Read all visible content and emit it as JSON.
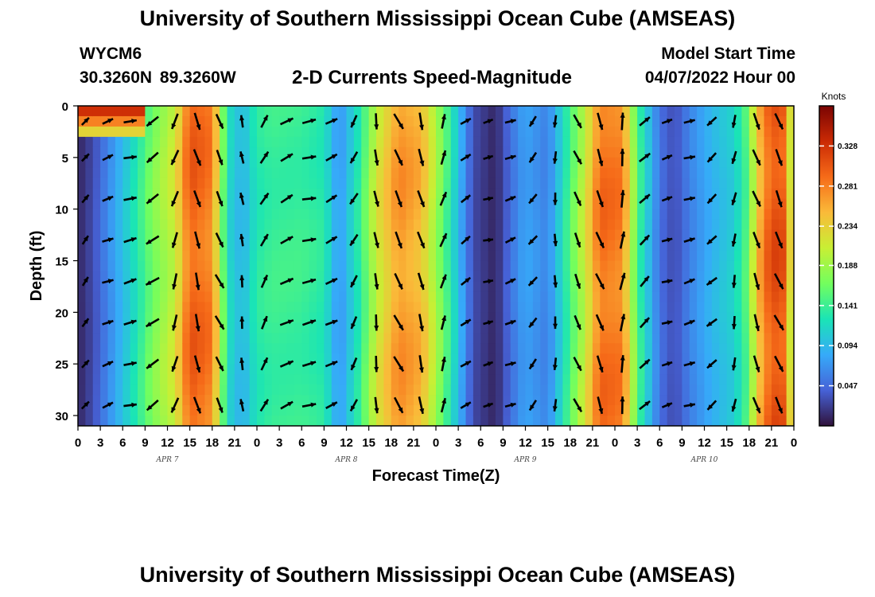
{
  "header": {
    "title": "University of Southern Mississippi Ocean Cube (AMSEAS)",
    "station_id": "WYCM6",
    "station_coords": "30.3260N  89.3260W",
    "subtitle": "2-D Currents Speed-Magnitude",
    "start_label": "Model Start Time",
    "start_value": "04/07/2022 Hour 00"
  },
  "footer": {
    "title": "University of Southern Mississippi Ocean Cube (AMSEAS)"
  },
  "chart_data": {
    "type": "heatmap",
    "title": "2-D Currents Speed-Magnitude",
    "xlabel": "Forecast Time(Z)",
    "ylabel": "Depth (ft)",
    "x_hours_range": [
      0,
      96
    ],
    "y_range": [
      0,
      31
    ],
    "y_inverted": true,
    "x_tick_labels": [
      "0",
      "3",
      "6",
      "9",
      "12",
      "15",
      "18",
      "21",
      "0",
      "3",
      "6",
      "9",
      "12",
      "15",
      "18",
      "21",
      "0",
      "3",
      "6",
      "9",
      "12",
      "15",
      "18",
      "21",
      "0",
      "3",
      "6",
      "9",
      "12",
      "15",
      "18",
      "21",
      "0"
    ],
    "y_ticks": [
      0,
      5,
      10,
      15,
      20,
      25,
      30
    ],
    "day_labels": [
      {
        "label": "APR 7",
        "hour": 12
      },
      {
        "label": "APR 8",
        "hour": 36
      },
      {
        "label": "APR 9",
        "hour": 60
      },
      {
        "label": "APR 10",
        "hour": 84
      }
    ],
    "colorbar": {
      "unit_label": "Knots",
      "range": [
        0,
        0.375
      ],
      "ticks": [
        0.047,
        0.094,
        0.141,
        0.188,
        0.234,
        0.281,
        0.328
      ],
      "tick_labels": [
        "0.047",
        "0.094",
        "0.141",
        "0.188",
        "0.234",
        "0.281",
        "0.328"
      ],
      "colormap": [
        "#30123b",
        "#4662d7",
        "#36aaf9",
        "#1ae4b6",
        "#72fe5e",
        "#c8ef34",
        "#faba39",
        "#f66b19",
        "#ca2a04",
        "#7a0403"
      ]
    },
    "speed_by_hour_knots": {
      "hours": [
        0,
        2,
        5,
        8,
        10,
        13,
        15,
        18,
        20,
        22,
        24,
        26,
        30,
        33,
        35,
        38,
        40,
        43,
        46,
        50,
        53,
        56,
        58,
        60,
        63,
        65,
        68,
        70,
        73,
        75,
        78,
        80,
        82,
        85,
        88,
        90,
        91,
        93,
        95,
        96
      ],
      "values": [
        0.01,
        0.03,
        0.08,
        0.13,
        0.17,
        0.21,
        0.3,
        0.28,
        0.12,
        0.09,
        0.13,
        0.14,
        0.14,
        0.13,
        0.07,
        0.14,
        0.21,
        0.27,
        0.25,
        0.13,
        0.03,
        0.01,
        0.05,
        0.08,
        0.06,
        0.12,
        0.21,
        0.29,
        0.28,
        0.15,
        0.05,
        0.03,
        0.06,
        0.09,
        0.11,
        0.16,
        0.24,
        0.31,
        0.3,
        0.15
      ]
    },
    "surface_layer_speed_knots": 0.33,
    "arrow_rows_ft": [
      1.5,
      5,
      9,
      13,
      17,
      21,
      25,
      29
    ],
    "arrow_cols_hours": [
      1,
      4,
      7,
      10,
      13,
      16,
      19,
      22,
      25,
      28,
      31,
      34,
      37,
      40,
      43,
      46,
      49,
      52,
      55,
      58,
      61,
      64,
      67,
      70,
      73,
      76,
      79,
      82,
      85,
      88,
      91,
      94
    ]
  }
}
